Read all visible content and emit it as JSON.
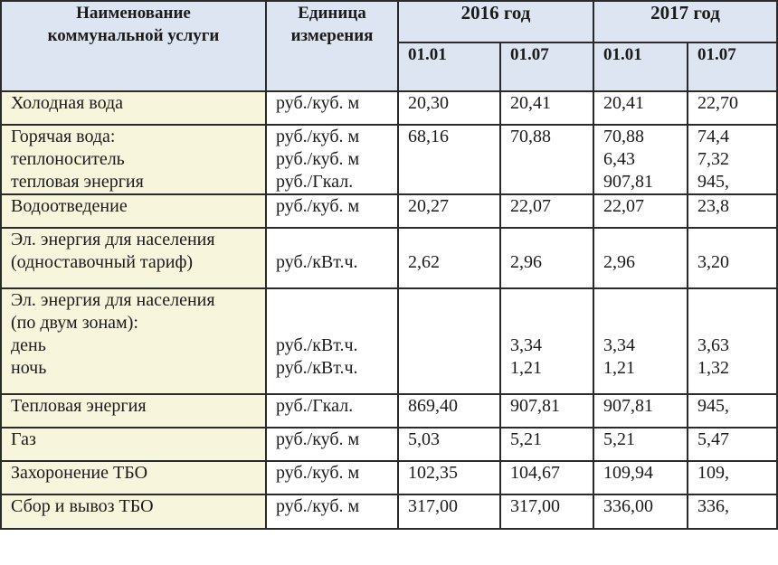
{
  "headers": {
    "name": [
      "Наименование",
      "коммунальной услуги"
    ],
    "unit": [
      "Единица",
      "измерения"
    ],
    "year_2016": "2016 год",
    "year_2017": "2017 год",
    "dates": [
      "01.01",
      "01.07",
      "01.01",
      "01.07"
    ]
  },
  "rows": [
    {
      "name": [
        "Холодная вода"
      ],
      "unit": [
        "руб./куб. м"
      ],
      "v1": [
        "20,30"
      ],
      "v2": [
        "20,41"
      ],
      "v3": [
        "20,41"
      ],
      "v4": [
        "22,70"
      ]
    },
    {
      "name": [
        "Горячая вода:",
        "теплоноситель",
        "тепловая энергия"
      ],
      "unit": [
        "руб./куб. м",
        "руб./куб. м",
        "руб./Гкал."
      ],
      "v1": [
        "68,16",
        "",
        ""
      ],
      "v2": [
        "70,88",
        "",
        ""
      ],
      "v3": [
        "70,88",
        "6,43",
        "907,81"
      ],
      "v4": [
        "74,4",
        "7,32",
        "945,"
      ]
    },
    {
      "name": [
        "Водоотведение"
      ],
      "unit": [
        "руб./куб. м"
      ],
      "v1": [
        "20,27"
      ],
      "v2": [
        "22,07"
      ],
      "v3": [
        "22,07"
      ],
      "v4": [
        "23,8"
      ]
    },
    {
      "name": [
        "Эл. энергия для населения",
        "(одноставочный тариф)"
      ],
      "unit": [
        "",
        "руб./кВт.ч."
      ],
      "v1": [
        "",
        "2,62"
      ],
      "v2": [
        "",
        "2,96"
      ],
      "v3": [
        "",
        "2,96"
      ],
      "v4": [
        "",
        "3,20"
      ]
    },
    {
      "name": [
        "Эл. энергия для населения",
        "(по двум зонам):",
        "день",
        "ночь"
      ],
      "unit": [
        "",
        "",
        "руб./кВт.ч.",
        "руб./кВт.ч."
      ],
      "v1": [
        "",
        "",
        "",
        ""
      ],
      "v2": [
        "",
        "",
        "3,34",
        "1,21"
      ],
      "v3": [
        "",
        "",
        "3,34",
        "1,21"
      ],
      "v4": [
        "",
        "",
        "3,63",
        "1,32"
      ]
    },
    {
      "name": [
        "Тепловая энергия"
      ],
      "unit": [
        "руб./Гкал."
      ],
      "v1": [
        "869,40"
      ],
      "v2": [
        "907,81"
      ],
      "v3": [
        "907,81"
      ],
      "v4": [
        "945,"
      ]
    },
    {
      "name": [
        "Газ"
      ],
      "unit": [
        "руб./куб. м"
      ],
      "v1": [
        "5,03"
      ],
      "v2": [
        "5,21"
      ],
      "v3": [
        "5,21"
      ],
      "v4": [
        "5,47"
      ]
    },
    {
      "name": [
        "Захоронение ТБО"
      ],
      "unit": [
        "руб./куб. м"
      ],
      "v1": [
        "102,35"
      ],
      "v2": [
        "104,67"
      ],
      "v3": [
        "109,94"
      ],
      "v4": [
        "109,"
      ]
    },
    {
      "name": [
        "Сбор и вывоз ТБО"
      ],
      "unit": [
        "руб./куб. м"
      ],
      "v1": [
        "317,00"
      ],
      "v2": [
        "317,00"
      ],
      "v3": [
        "336,00"
      ],
      "v4": [
        "336,"
      ]
    }
  ]
}
